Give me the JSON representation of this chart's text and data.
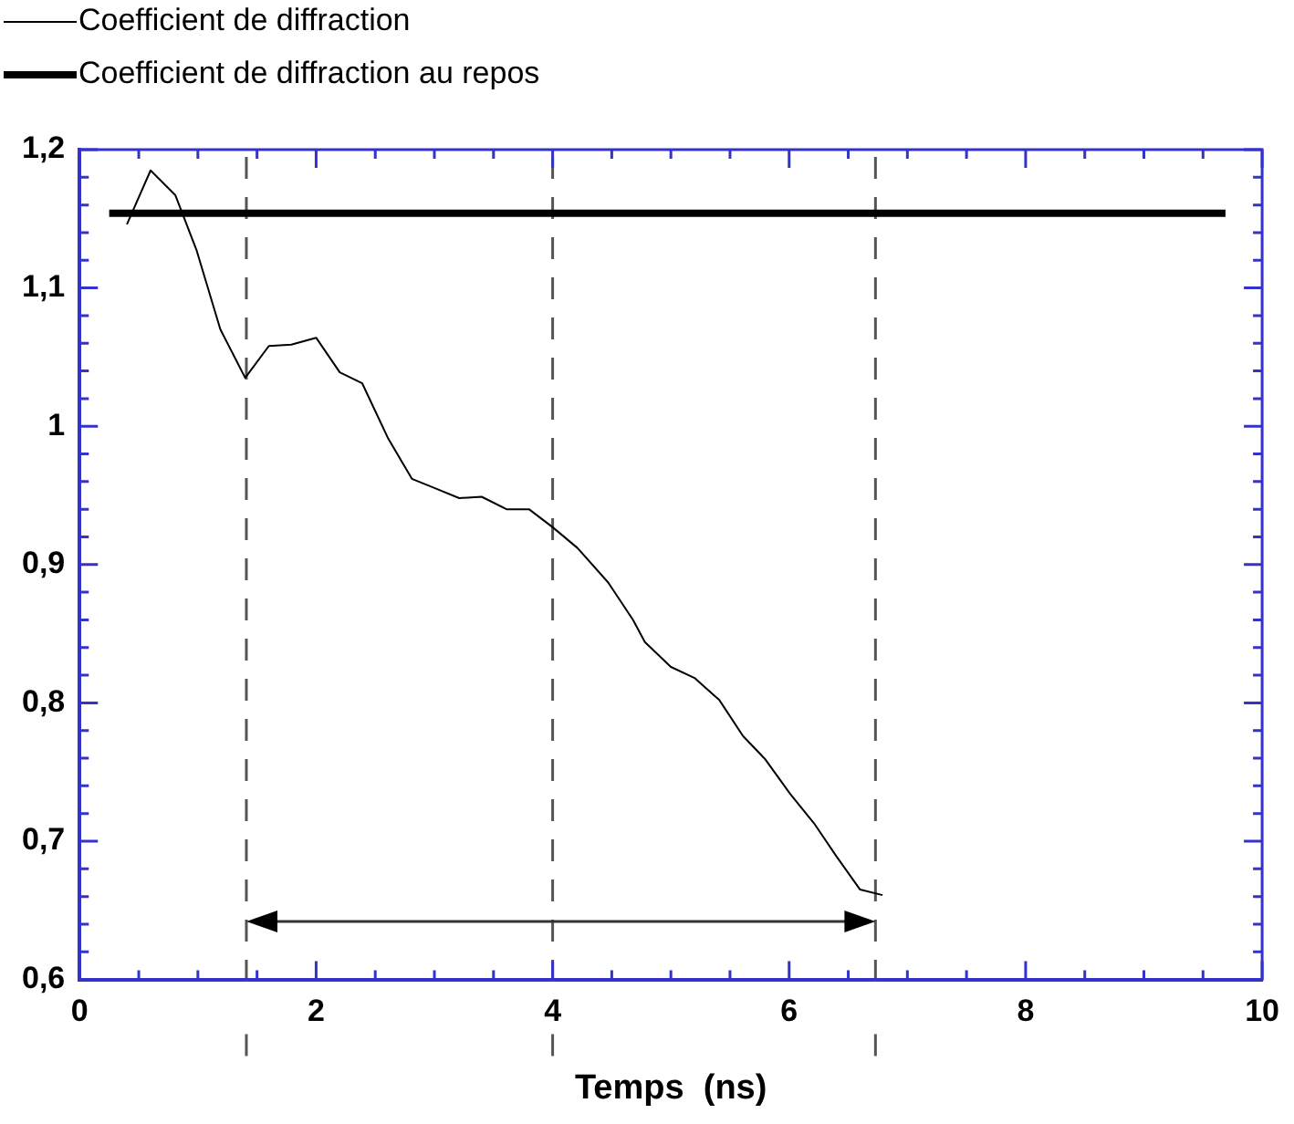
{
  "chart_data": {
    "type": "line",
    "xlabel": "Temps  (ns)",
    "legend": "top left",
    "grid": false,
    "marker": "none",
    "xlim": [
      0,
      10
    ],
    "ylim": [
      0.6,
      1.2
    ],
    "xticks": [
      0,
      {
        "value": 0.5,
        "label": null
      },
      {
        "value": 1,
        "label": null
      },
      {
        "value": 1.5,
        "label": null
      },
      2,
      {
        "value": 2.5,
        "label": null
      },
      {
        "value": 3,
        "label": null
      },
      {
        "value": 3.5,
        "label": null
      },
      4,
      {
        "value": 4.5,
        "label": null
      },
      {
        "value": 5,
        "label": null
      },
      {
        "value": 5.5,
        "label": null
      },
      6,
      {
        "value": 6.5,
        "label": null
      },
      {
        "value": 7,
        "label": null
      },
      {
        "value": 7.5,
        "label": null
      },
      8,
      {
        "value": 8.5,
        "label": null
      },
      {
        "value": 9,
        "label": null
      },
      {
        "value": 9.5,
        "label": null
      },
      10
    ],
    "yticks": [
      {
        "value": 0.6,
        "label": "0,6"
      },
      {
        "value": 0.62,
        "label": null
      },
      {
        "value": 0.64,
        "label": null
      },
      {
        "value": 0.66,
        "label": null
      },
      {
        "value": 0.68,
        "label": null
      },
      {
        "value": 0.7,
        "label": "0,7"
      },
      {
        "value": 0.72,
        "label": null
      },
      {
        "value": 0.74,
        "label": null
      },
      {
        "value": 0.76,
        "label": null
      },
      {
        "value": 0.78,
        "label": null
      },
      {
        "value": 0.8,
        "label": "0,8"
      },
      {
        "value": 0.82,
        "label": null
      },
      {
        "value": 0.84,
        "label": null
      },
      {
        "value": 0.86,
        "label": null
      },
      {
        "value": 0.88,
        "label": null
      },
      {
        "value": 0.9,
        "label": "0,9"
      },
      {
        "value": 0.92,
        "label": null
      },
      {
        "value": 0.94,
        "label": null
      },
      {
        "value": 0.96,
        "label": null
      },
      {
        "value": 0.98,
        "label": null
      },
      {
        "value": 1,
        "label": "1"
      },
      {
        "value": 1.02,
        "label": null
      },
      {
        "value": 1.04,
        "label": null
      },
      {
        "value": 1.06,
        "label": null
      },
      {
        "value": 1.08,
        "label": null
      },
      {
        "value": 1.1,
        "label": "1,1"
      },
      {
        "value": 1.12,
        "label": null
      },
      {
        "value": 1.14,
        "label": null
      },
      {
        "value": 1.16,
        "label": null
      },
      {
        "value": 1.18,
        "label": null
      },
      {
        "value": 1.2,
        "label": "1,2"
      }
    ],
    "series": [
      {
        "name": "Coefficient de diffraction",
        "color": "#000000",
        "x": [
          0.4,
          0.6,
          0.81,
          0.99,
          1.19,
          1.4,
          1.6,
          1.79,
          2.0,
          2.2,
          2.39,
          2.61,
          2.81,
          3.01,
          3.21,
          3.4,
          3.61,
          3.8,
          4.0,
          4.21,
          4.47,
          4.68,
          4.78,
          5.0,
          5.2,
          5.41,
          5.61,
          5.8,
          6.01,
          6.21,
          6.4,
          6.6,
          6.79
        ],
        "values": [
          1.146,
          1.185,
          1.167,
          1.127,
          1.07,
          1.035,
          1.058,
          1.059,
          1.064,
          1.039,
          1.031,
          0.991,
          0.962,
          0.955,
          0.948,
          0.949,
          0.94,
          0.94,
          0.927,
          0.912,
          0.887,
          0.86,
          0.844,
          0.826,
          0.818,
          0.802,
          0.776,
          0.759,
          0.734,
          0.713,
          0.689,
          0.665,
          0.661
        ]
      },
      {
        "name": "Coefficient de diffraction au repos",
        "color": "#000000",
        "x": [
          0.25,
          9.69
        ],
        "values": [
          1.154,
          1.154
        ]
      }
    ],
    "ref_lines": [
      {
        "axis": "x",
        "value": 1.41,
        "color": "#555555",
        "line_style": "dashed"
      },
      {
        "axis": "x",
        "value": 4.0,
        "color": "#555555",
        "line_style": "dashed"
      },
      {
        "axis": "x",
        "value": 6.73,
        "color": "#555555",
        "line_style": "dashed"
      }
    ]
  }
}
